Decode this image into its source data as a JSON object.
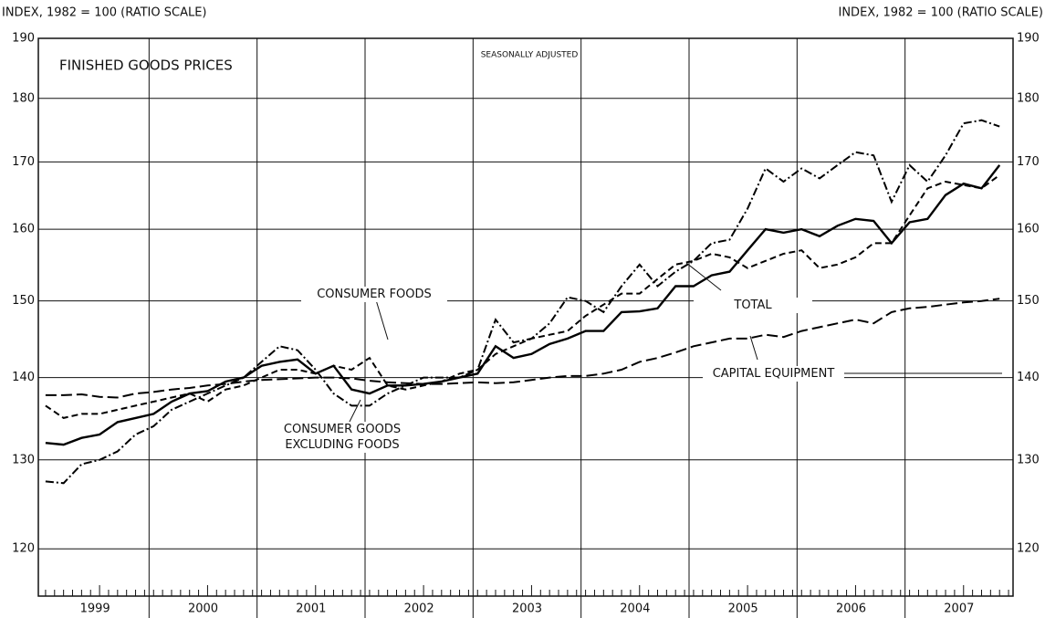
{
  "chart_data": {
    "type": "line",
    "title": "FINISHED GOODS PRICES",
    "subtitle": "SEASONALLY ADJUSTED",
    "y_label": "INDEX, 1982 = 100 (RATIO SCALE)",
    "log_scale": true,
    "grid": true,
    "ylim": [
      115,
      190
    ],
    "yticks": [
      120,
      130,
      140,
      150,
      160,
      170,
      180,
      190
    ],
    "years": [
      "1999",
      "2000",
      "2001",
      "2002",
      "2003",
      "2004",
      "2005",
      "2006",
      "2007"
    ],
    "x": [
      "1999-01",
      "1999-03",
      "1999-05",
      "1999-07",
      "1999-09",
      "1999-11",
      "2000-01",
      "2000-03",
      "2000-05",
      "2000-07",
      "2000-09",
      "2000-11",
      "2001-01",
      "2001-03",
      "2001-05",
      "2001-07",
      "2001-09",
      "2001-11",
      "2002-01",
      "2002-03",
      "2002-05",
      "2002-07",
      "2002-09",
      "2002-11",
      "2003-01",
      "2003-03",
      "2003-05",
      "2003-07",
      "2003-09",
      "2003-11",
      "2004-01",
      "2004-03",
      "2004-05",
      "2004-07",
      "2004-09",
      "2004-11",
      "2005-01",
      "2005-03",
      "2005-05",
      "2005-07",
      "2005-09",
      "2005-11",
      "2006-01",
      "2006-03",
      "2006-05",
      "2006-07",
      "2006-09",
      "2006-11",
      "2007-01",
      "2007-03",
      "2007-05",
      "2007-07",
      "2007-09",
      "2007-11"
    ],
    "series": [
      {
        "name": "TOTAL",
        "color": "#000000",
        "dash": "none",
        "values": [
          132,
          131.8,
          132.6,
          133,
          134.5,
          135,
          135.5,
          137,
          138,
          138.3,
          139.5,
          140,
          141.5,
          142,
          142.3,
          140.5,
          141.5,
          138.5,
          138,
          139,
          139,
          139.2,
          139.5,
          140,
          140.5,
          144,
          142.5,
          143,
          144.3,
          145,
          146,
          146,
          148.5,
          148.6,
          149,
          152,
          152,
          153.5,
          154,
          157,
          160,
          159.5,
          160,
          159,
          160.5,
          161.5,
          161.2,
          158,
          161,
          161.5,
          165,
          166.7,
          166,
          169.5
        ]
      },
      {
        "name": "CONSUMER FOODS",
        "color": "#000000",
        "dash": "7,4",
        "values": [
          136.5,
          135,
          135.5,
          135.5,
          136,
          136.5,
          137,
          137.5,
          138,
          137,
          138.5,
          139,
          140,
          141,
          141,
          140.5,
          141.5,
          141,
          142.5,
          139,
          138.5,
          139,
          139.5,
          140.5,
          141,
          143,
          144,
          145,
          145.5,
          146,
          148,
          149.5,
          151,
          151,
          153,
          155,
          155.5,
          156.5,
          156,
          154.5,
          155.5,
          156.5,
          157,
          154.5,
          155,
          156,
          158,
          158,
          162,
          166,
          167,
          166.5,
          166,
          168
        ]
      },
      {
        "name": "CONSUMER GOODS EXCLUDING FOODS",
        "color": "#000000",
        "dash": "9,3,2,3",
        "values": [
          127.5,
          127.3,
          129.5,
          130,
          131,
          133,
          134,
          136,
          137,
          138,
          139,
          140,
          142,
          144,
          143.5,
          141,
          138,
          136.5,
          136.5,
          138,
          139,
          140,
          140,
          140,
          141,
          147.5,
          144.5,
          145,
          147,
          150.5,
          150,
          148.5,
          152,
          155,
          152,
          154,
          155.5,
          158,
          158.5,
          163,
          169,
          167,
          169,
          167.5,
          169.5,
          171.5,
          171,
          164,
          169.5,
          167,
          171,
          176,
          176.5,
          175.5
        ]
      },
      {
        "name": "CAPITAL EQUIPMENT",
        "color": "#000000",
        "dash": "12,5",
        "values": [
          137.8,
          137.8,
          137.9,
          137.6,
          137.5,
          138,
          138.2,
          138.5,
          138.7,
          139,
          139.2,
          139.5,
          139.7,
          139.8,
          139.9,
          140,
          140,
          139.9,
          139.6,
          139.4,
          139.3,
          139.2,
          139.2,
          139.3,
          139.4,
          139.3,
          139.4,
          139.7,
          140,
          140.2,
          140.2,
          140.5,
          141,
          142,
          142.5,
          143.2,
          144,
          144.5,
          145,
          145,
          145.5,
          145.2,
          146,
          146.5,
          147,
          147.5,
          147,
          148.5,
          149,
          149.2,
          149.5,
          149.8,
          150,
          150.3
        ]
      }
    ]
  }
}
